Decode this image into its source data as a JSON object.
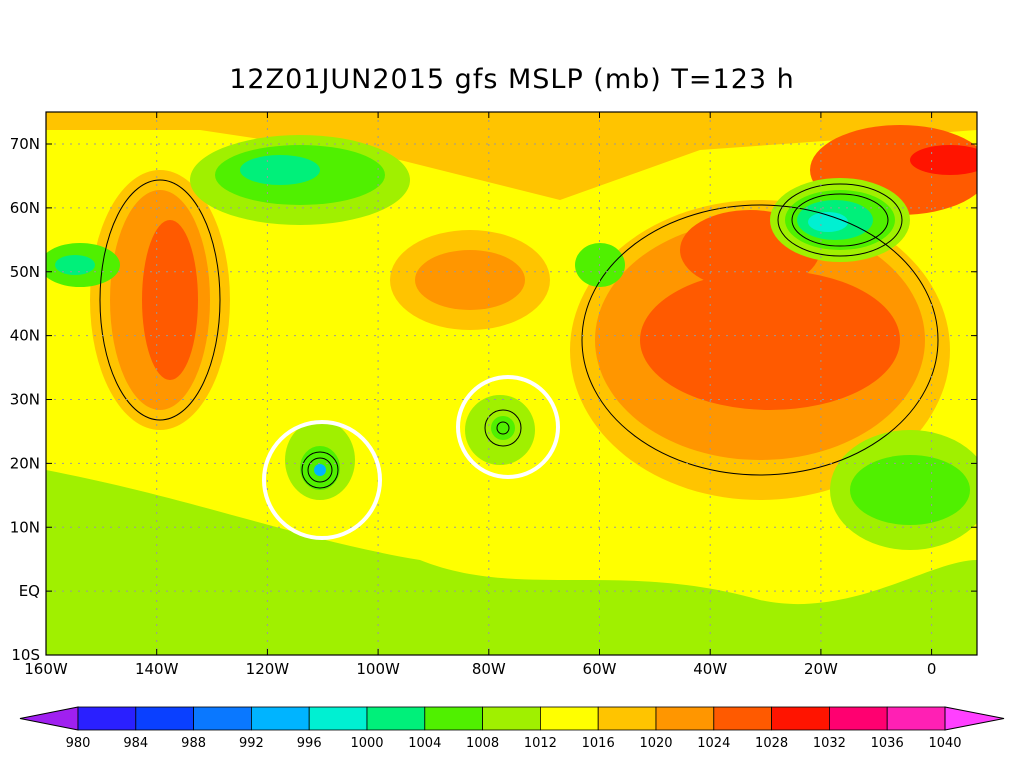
{
  "title": "12Z01JUN2015 gfs MSLP (mb) T=123 h",
  "lat_labels": [
    "70N",
    "60N",
    "50N",
    "40N",
    "30N",
    "20N",
    "10N",
    "EQ",
    "10S"
  ],
  "lon_labels": [
    "160W",
    "140W",
    "120W",
    "100W",
    "80W",
    "60W",
    "40W",
    "20W",
    "0"
  ],
  "colorbar": {
    "levels": [
      980,
      984,
      988,
      992,
      996,
      1000,
      1004,
      1008,
      1012,
      1016,
      1020,
      1024,
      1028,
      1032,
      1036,
      1040
    ],
    "colors": [
      "#a020f0",
      "#2a20ff",
      "#0a40ff",
      "#0a78ff",
      "#00b4ff",
      "#00f0d2",
      "#00f07a",
      "#50f000",
      "#a0f000",
      "#ffff00",
      "#ffc400",
      "#ff9600",
      "#ff5a00",
      "#ff1400",
      "#ff0070",
      "#ff20b4",
      "#ff40ff"
    ]
  }
}
